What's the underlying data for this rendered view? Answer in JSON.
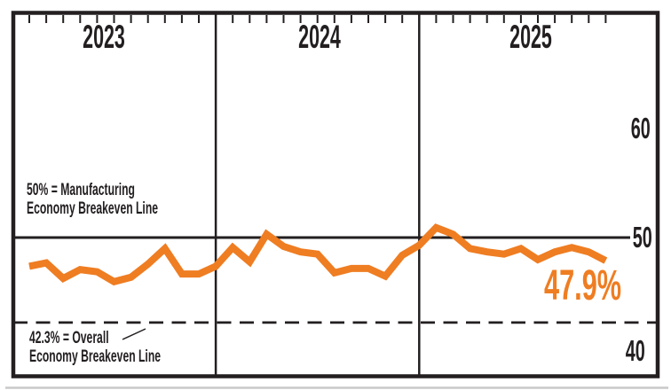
{
  "ui": {
    "year_labels": [
      "2023",
      "2024",
      "2025"
    ],
    "y_axis_labels": [
      "60",
      "50",
      "40"
    ],
    "annotations": {
      "manufacturing_breakeven": {
        "line1": "50% = Manufacturing",
        "line2": "Economy Breakeven Line"
      },
      "overall_breakeven": {
        "line1": "42.3% = Overall",
        "line2": "Economy Breakeven Line"
      }
    },
    "latest_value_label": "47.9%"
  },
  "colors": {
    "accent": "#EF7D22",
    "ink": "#231F20",
    "shadow": "#C9C9C9"
  },
  "chart_data": {
    "type": "line",
    "title": "",
    "x_unit": "month",
    "categories_years": [
      "2023",
      "2024",
      "2025"
    ],
    "months_per_year": [
      12,
      12,
      11
    ],
    "series": [
      {
        "name": "pmi-monthly",
        "color": "#EF7D22",
        "values": [
          47.4,
          47.7,
          46.3,
          47.1,
          46.9,
          46.0,
          46.4,
          47.6,
          49.0,
          46.7,
          46.7,
          47.4,
          49.1,
          47.8,
          50.3,
          49.2,
          48.7,
          48.5,
          46.8,
          47.2,
          47.2,
          46.5,
          48.4,
          49.3,
          50.9,
          50.3,
          49.0,
          48.7,
          48.5,
          49.0,
          48.0,
          48.7,
          49.1,
          48.7,
          47.9
        ]
      }
    ],
    "reference_lines": [
      {
        "value": 50,
        "style": "solid",
        "label": "50% = Manufacturing Economy Breakeven Line"
      },
      {
        "value": 42.3,
        "style": "dashed",
        "label": "42.3% = Overall Economy Breakeven Line"
      }
    ],
    "y_ticks": [
      40,
      50,
      60
    ],
    "ylim": [
      37,
      70.5
    ],
    "last_point_label": "47.9%",
    "grid": "year dividers (vertical), month tick marks along top edge, no horizontal gridlines except breakeven lines",
    "legend": "none"
  }
}
